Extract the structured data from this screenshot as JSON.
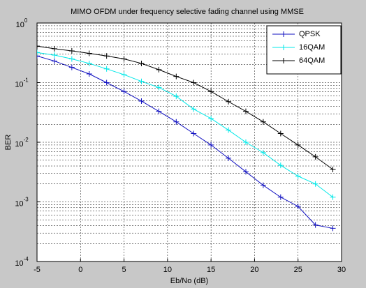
{
  "chart_data": {
    "type": "line",
    "title": "MIMO OFDM under frequency selective fading channel using MMSE",
    "x_label": "Eb/No (dB)",
    "y_label": "BER",
    "x": [
      -5,
      -3,
      -1,
      1,
      3,
      5,
      7,
      9,
      11,
      13,
      15,
      17,
      19,
      21,
      23,
      25,
      27,
      29
    ],
    "series": [
      {
        "name": "QPSK",
        "color": "#1010c0",
        "values": [
          0.28,
          0.23,
          0.18,
          0.14,
          0.1,
          0.071,
          0.049,
          0.033,
          0.022,
          0.014,
          0.009,
          0.0054,
          0.0032,
          0.0019,
          0.0012,
          0.00084,
          0.00041,
          0.00036
        ]
      },
      {
        "name": "16QAM",
        "color": "#00e8e8",
        "values": [
          0.32,
          0.29,
          0.25,
          0.21,
          0.17,
          0.136,
          0.105,
          0.083,
          0.059,
          0.036,
          0.025,
          0.016,
          0.01,
          0.0067,
          0.0041,
          0.0027,
          0.002,
          0.0012
        ]
      },
      {
        "name": "64QAM",
        "color": "#000000",
        "values": [
          0.41,
          0.37,
          0.34,
          0.31,
          0.28,
          0.25,
          0.21,
          0.165,
          0.127,
          0.1,
          0.071,
          0.048,
          0.033,
          0.022,
          0.014,
          0.009,
          0.0057,
          0.0035
        ]
      }
    ],
    "xlim": [
      -5,
      30
    ],
    "xticks": [
      -5,
      0,
      5,
      10,
      15,
      20,
      25,
      30
    ],
    "ylim": [
      0.0001,
      1
    ],
    "y_scale": "log",
    "yticks": [
      {
        "value": 0.0001,
        "label": "10^-4"
      },
      {
        "value": 0.001,
        "label": "10^-3"
      },
      {
        "value": 0.01,
        "label": "10^-2"
      },
      {
        "value": 0.1,
        "label": "10^-1"
      },
      {
        "value": 1,
        "label": "10^0"
      }
    ],
    "grid": true,
    "legend": "top-right"
  }
}
